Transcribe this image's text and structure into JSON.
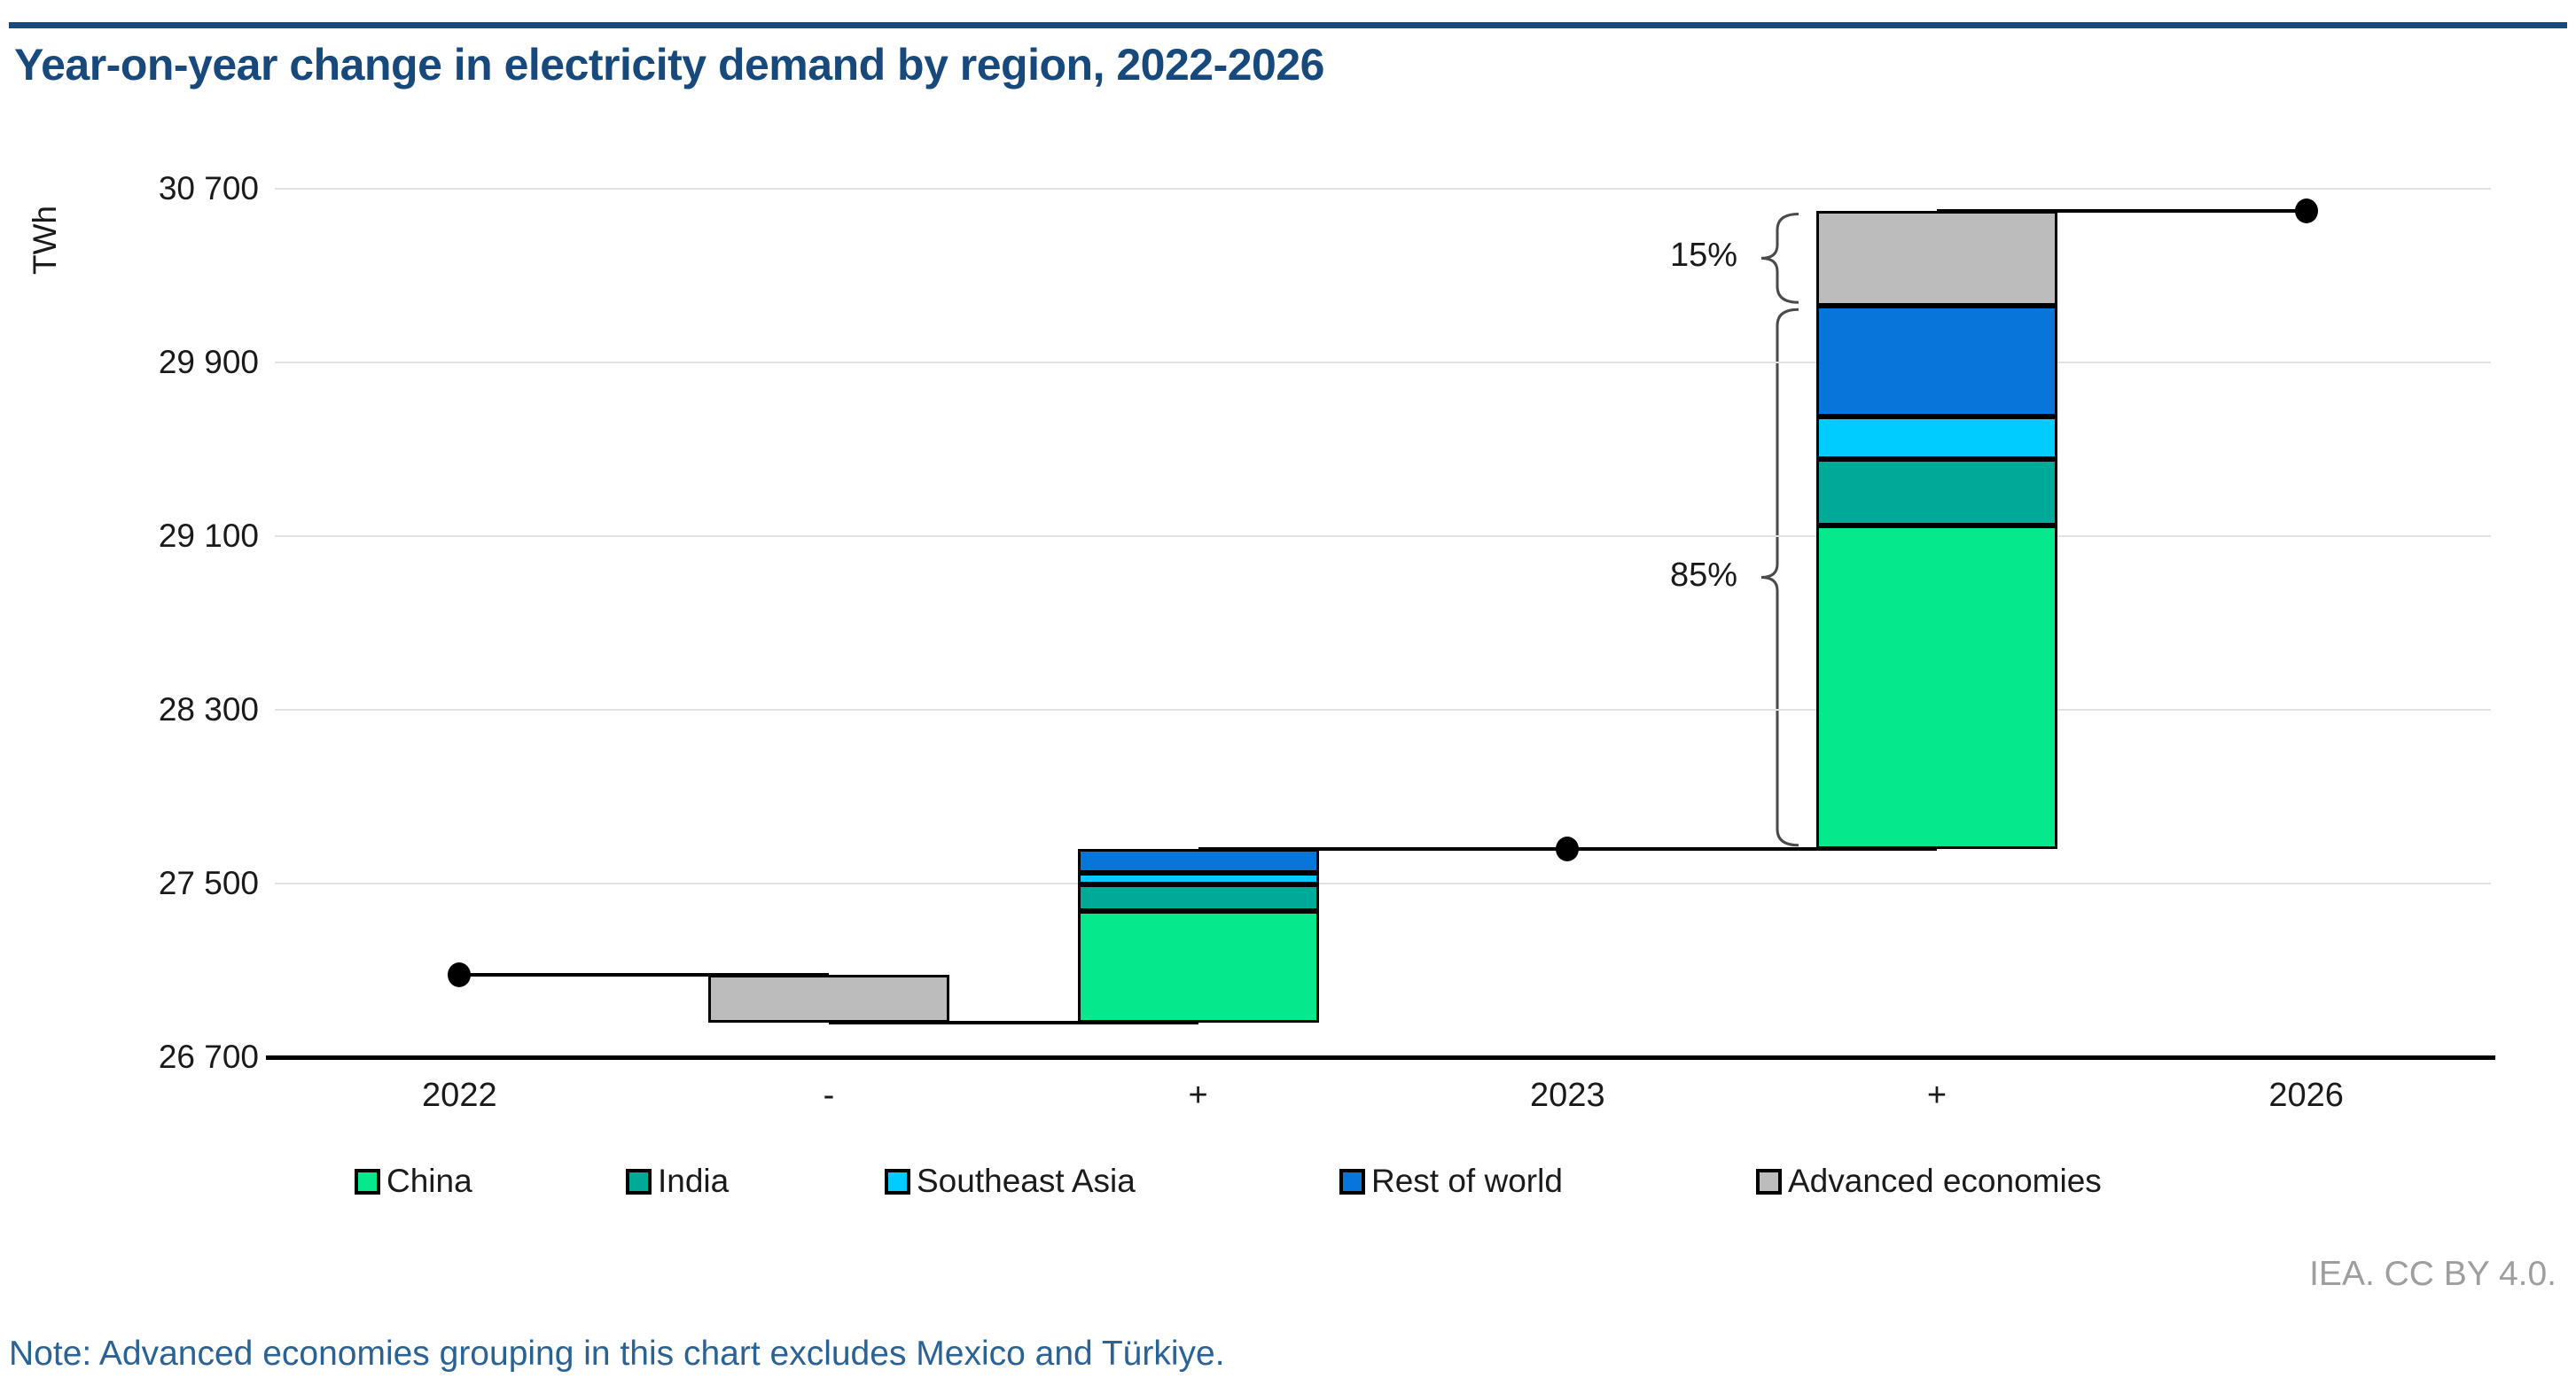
{
  "page": {
    "title": "Year-on-year change in electricity demand by region, 2022-2026",
    "attribution": "IEA. CC BY 4.0.",
    "note": "Note: Advanced economies grouping in this chart excludes Mexico and Türkiye."
  },
  "chart_data": {
    "type": "waterfall-stacked-bar",
    "title": "Year-on-year change in electricity demand by region, 2022-2026",
    "unit": "TWh",
    "ylabel": "TWh",
    "ylim": [
      26700,
      30700
    ],
    "ytick_step": 800,
    "grid": true,
    "yticks": [
      {
        "value": 30700,
        "label": "30 700"
      },
      {
        "value": 29900,
        "label": "29 900"
      },
      {
        "value": 29100,
        "label": "29 100"
      },
      {
        "value": 28300,
        "label": "28 300"
      },
      {
        "value": 27500,
        "label": "27 500"
      },
      {
        "value": 26700,
        "label": "26 700"
      }
    ],
    "categories": [
      "2022",
      "-",
      "+",
      "2023",
      "+",
      "2026"
    ],
    "columns": [
      {
        "label": "2022",
        "type": "point",
        "value": 27080
      },
      {
        "label": "-",
        "type": "bar",
        "segments": [
          {
            "region": "Advanced economies",
            "value": -220
          }
        ]
      },
      {
        "label": "+",
        "type": "bar",
        "segments": [
          {
            "region": "China",
            "value": 515
          },
          {
            "region": "India",
            "value": 120
          },
          {
            "region": "Southeast Asia",
            "value": 55
          },
          {
            "region": "Rest of world",
            "value": 110
          }
        ]
      },
      {
        "label": "2023",
        "type": "point",
        "value": 27660
      },
      {
        "label": "+",
        "type": "bar",
        "segments": [
          {
            "region": "China",
            "value": 1490
          },
          {
            "region": "India",
            "value": 305
          },
          {
            "region": "Southeast Asia",
            "value": 195
          },
          {
            "region": "Rest of world",
            "value": 510
          },
          {
            "region": "Advanced economies",
            "value": 440
          }
        ]
      },
      {
        "label": "2026",
        "type": "point",
        "value": 30600
      }
    ],
    "legend": [
      {
        "label": "China",
        "color": "#06E88C"
      },
      {
        "label": "India",
        "color": "#00A998"
      },
      {
        "label": "Southeast Asia",
        "color": "#00CCFF"
      },
      {
        "label": "Rest of world",
        "color": "#0875DB"
      },
      {
        "label": "Advanced economies",
        "color": "#BCBCBC"
      }
    ],
    "legend_position": "bottom",
    "annotations": [
      {
        "label": "15%",
        "column": 4,
        "from": 30160,
        "to": 30600
      },
      {
        "label": "85%",
        "column": 4,
        "from": 27660,
        "to": 30160
      }
    ]
  }
}
